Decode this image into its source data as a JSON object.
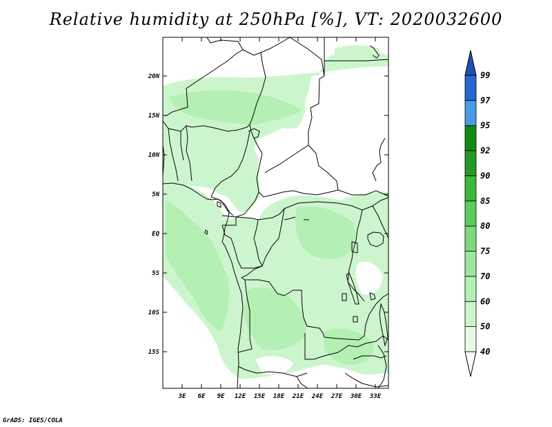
{
  "title": "Relative humidity at 250hPa [%], VT: 2020032600",
  "credit": "GrADS: IGES/COLA",
  "map": {
    "lat_ticks": [
      "20N",
      "15N",
      "10N",
      "5N",
      "EQ",
      "5S",
      "10S",
      "15S"
    ],
    "lon_ticks": [
      "3E",
      "6E",
      "9E",
      "12E",
      "15E",
      "18E",
      "21E",
      "24E",
      "27E",
      "30E",
      "33E"
    ],
    "colors": {
      "border": "#000000",
      "background": "#ffffff"
    }
  },
  "legend": {
    "levels": [
      "40",
      "50",
      "60",
      "70",
      "75",
      "80",
      "85",
      "90",
      "92",
      "95",
      "97",
      "99"
    ],
    "colors": [
      "#ffffff",
      "#e6fae6",
      "#cdf5cd",
      "#b4f0b4",
      "#9ae69a",
      "#7ed87e",
      "#5ccc5c",
      "#3ab83a",
      "#229b22",
      "#118a11",
      "#4a9ae6",
      "#2468d0",
      "#1e50b4"
    ]
  }
}
